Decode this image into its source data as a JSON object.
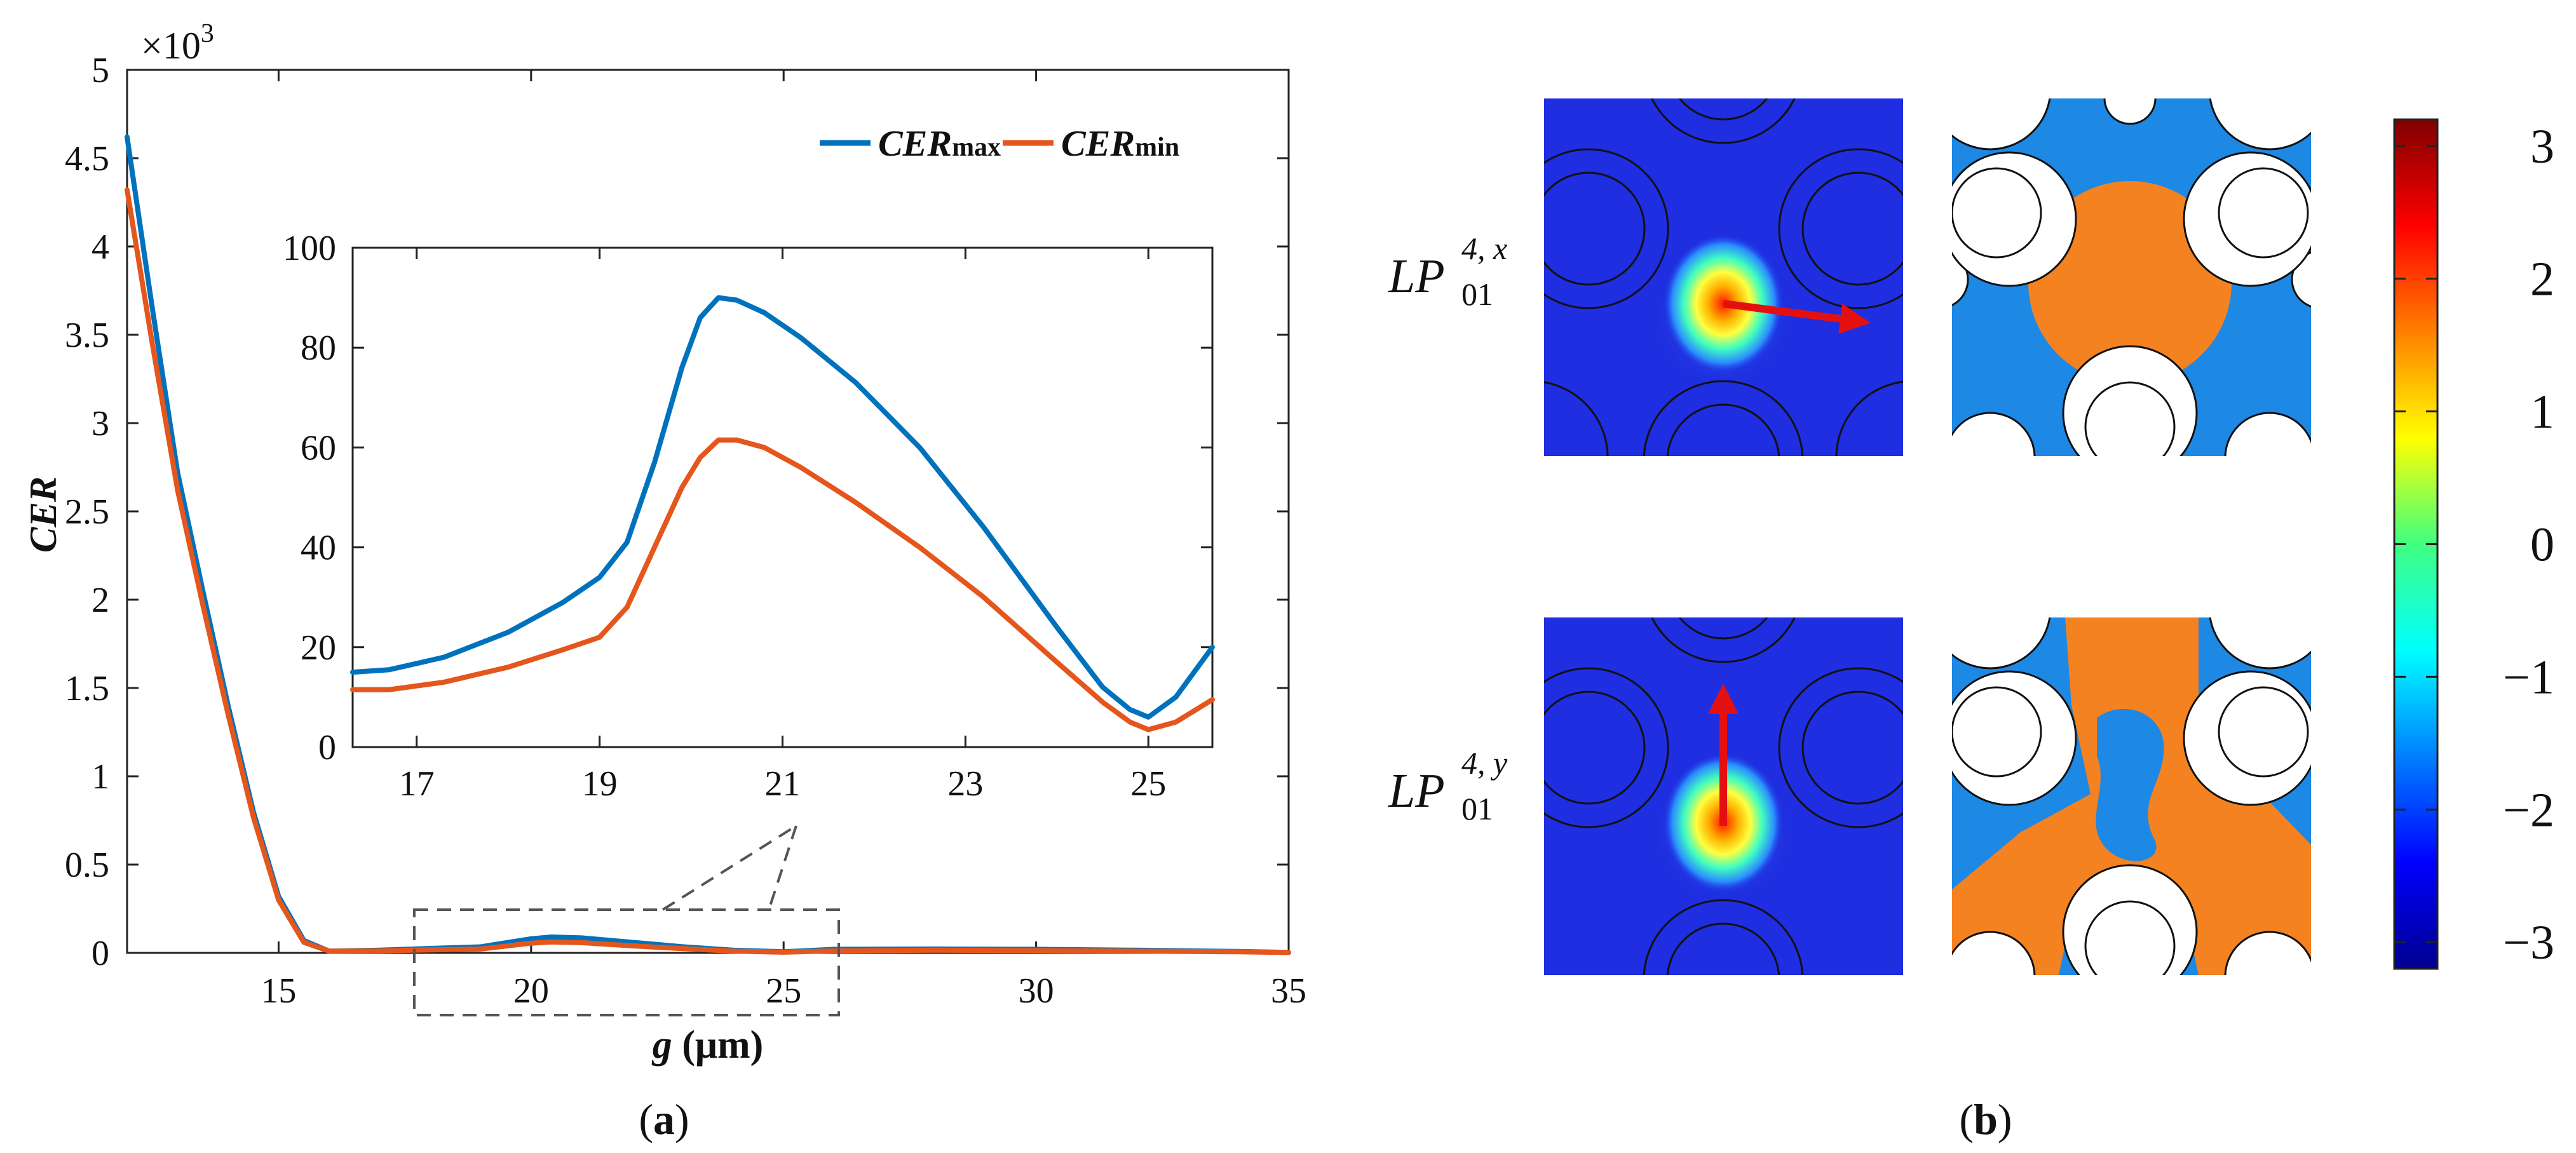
{
  "colors": {
    "cer_max": "#0072BD",
    "cer_min": "#E5561D",
    "field_bg": "#1e2ee0",
    "phase_pos": "#f58220",
    "phase_neg": "#1e88e5",
    "arrow": "#e41010"
  },
  "panel_a": {
    "caption_open": "(",
    "caption_letter": "a",
    "caption_close": ")",
    "exponent_label": "×10",
    "exponent_power": "3",
    "ylabel": "CER",
    "xlabel_g": "g",
    "xlabel_unit": " (μm)",
    "legend_max_main": "CER",
    "legend_max_sub": "max",
    "legend_min_main": "CER",
    "legend_min_sub": "min"
  },
  "panel_b": {
    "caption_open": "(",
    "caption_letter": "b",
    "caption_close": ")",
    "mode_x_base": "LP",
    "mode_x_sup": "4, x",
    "mode_x_sub": "01",
    "mode_y_base": "LP",
    "mode_y_sup": "4, y",
    "mode_y_sub": "01",
    "colorbar_ticks": [
      "3",
      "2",
      "1",
      "0",
      "−1",
      "−2",
      "−3"
    ],
    "colorbar_range": [
      -3.2,
      3.2
    ]
  },
  "chart_data": [
    {
      "type": "line",
      "name": "main",
      "xlabel": "g (μm)",
      "ylabel": "CER",
      "xlim": [
        12,
        35
      ],
      "ylim": [
        0,
        5
      ],
      "y_multiplier": "×10^3",
      "xticks": [
        "15",
        "20",
        "25",
        "30",
        "35"
      ],
      "yticks": [
        "0",
        "0.5",
        "1",
        "1.5",
        "2",
        "2.5",
        "3",
        "3.5",
        "4",
        "4.5",
        "5"
      ],
      "legend_position": "top-right",
      "series": [
        {
          "name": "CERmax",
          "x": [
            12,
            12.5,
            13,
            13.5,
            14,
            14.5,
            15,
            15.5,
            16,
            17,
            18,
            19,
            20,
            20.4,
            21,
            22,
            23,
            24,
            25,
            26,
            28,
            30,
            32,
            34,
            35
          ],
          "y": [
            4.62,
            3.65,
            2.72,
            2.05,
            1.4,
            0.8,
            0.32,
            0.07,
            0.01,
            0.015,
            0.025,
            0.034,
            0.08,
            0.09,
            0.085,
            0.06,
            0.035,
            0.015,
            0.006,
            0.02,
            0.022,
            0.02,
            0.015,
            0.008,
            0.003
          ]
        },
        {
          "name": "CERmin",
          "x": [
            12,
            12.5,
            13,
            13.5,
            14,
            14.5,
            15,
            15.5,
            16,
            17,
            18,
            19,
            20,
            20.4,
            21,
            22,
            23,
            24,
            25,
            26,
            28,
            30,
            32,
            34,
            35
          ],
          "y": [
            4.32,
            3.45,
            2.62,
            1.97,
            1.35,
            0.77,
            0.3,
            0.06,
            0.01,
            0.012,
            0.017,
            0.022,
            0.055,
            0.062,
            0.058,
            0.04,
            0.024,
            0.01,
            0.004,
            0.012,
            0.015,
            0.013,
            0.01,
            0.006,
            0.002
          ]
        }
      ]
    },
    {
      "type": "line",
      "name": "inset",
      "xlim": [
        16.3,
        25.7
      ],
      "ylim": [
        0,
        100
      ],
      "xticks": [
        "17",
        "19",
        "21",
        "23",
        "25"
      ],
      "yticks": [
        "0",
        "20",
        "40",
        "60",
        "80",
        "100"
      ],
      "series": [
        {
          "name": "CERmax",
          "x": [
            16.3,
            16.7,
            17.3,
            18,
            18.6,
            19,
            19.3,
            19.6,
            19.9,
            20.1,
            20.3,
            20.5,
            20.8,
            21.2,
            21.8,
            22.5,
            23.2,
            24,
            24.5,
            24.8,
            25,
            25.3,
            25.7
          ],
          "y": [
            15,
            15.5,
            18,
            23,
            29,
            34,
            41,
            57,
            76,
            86,
            90,
            89.5,
            87,
            82,
            73,
            60,
            44,
            24,
            12,
            7.5,
            6,
            10,
            20
          ]
        },
        {
          "name": "CERmin",
          "x": [
            16.3,
            16.7,
            17.3,
            18,
            18.6,
            19,
            19.3,
            19.6,
            19.9,
            20.1,
            20.3,
            20.5,
            20.8,
            21.2,
            21.8,
            22.5,
            23.2,
            24,
            24.5,
            24.8,
            25,
            25.3,
            25.7
          ],
          "y": [
            11.5,
            11.5,
            13,
            16,
            19.5,
            22,
            28,
            40,
            52,
            58,
            61.5,
            61.5,
            60,
            56,
            49,
            40,
            30,
            17,
            9,
            5,
            3.5,
            5,
            9.5
          ]
        }
      ]
    }
  ]
}
